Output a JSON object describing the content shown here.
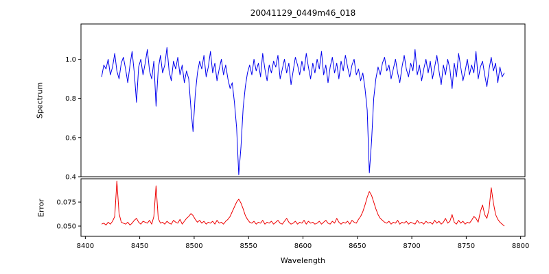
{
  "figure": {
    "title": "20041129_0449m46_018",
    "xlabel": "Wavelength"
  },
  "chart_data": [
    {
      "type": "line",
      "panel": "spectrum",
      "ylabel": "Spectrum",
      "color": "#0000ee",
      "xlim": [
        8396,
        8804
      ],
      "ylim": [
        0.4,
        1.18
      ],
      "yticks": [
        0.4,
        0.6,
        0.8,
        1.0
      ],
      "ytick_labels": [
        "0.4",
        "0.6",
        "0.8",
        "1.0"
      ],
      "xticks": [
        8400,
        8450,
        8500,
        8550,
        8600,
        8650,
        8700,
        8750,
        8800
      ],
      "xtick_labels": [
        "8400",
        "8450",
        "8500",
        "8550",
        "8600",
        "8650",
        "8700",
        "8750",
        "8800"
      ],
      "x_start": 8415,
      "x_step": 2,
      "values": [
        0.91,
        0.97,
        0.95,
        1.0,
        0.92,
        0.96,
        1.03,
        0.94,
        0.9,
        0.98,
        1.01,
        0.95,
        0.88,
        0.97,
        1.04,
        0.93,
        0.78,
        0.96,
        1.0,
        0.92,
        0.98,
        1.05,
        0.94,
        0.9,
        0.99,
        0.76,
        0.95,
        1.02,
        0.93,
        0.97,
        1.06,
        0.94,
        0.89,
        0.99,
        0.95,
        1.01,
        0.92,
        0.97,
        0.88,
        0.94,
        0.9,
        0.75,
        0.63,
        0.82,
        0.93,
        0.99,
        0.95,
        1.02,
        0.91,
        0.96,
        1.04,
        0.93,
        0.98,
        0.89,
        0.95,
        1.0,
        0.92,
        0.97,
        0.9,
        0.85,
        0.88,
        0.78,
        0.65,
        0.41,
        0.55,
        0.75,
        0.86,
        0.93,
        0.97,
        0.92,
        1.0,
        0.94,
        0.98,
        0.91,
        1.03,
        0.95,
        0.89,
        0.97,
        0.93,
        0.99,
        0.96,
        1.02,
        0.9,
        0.95,
        1.0,
        0.93,
        0.98,
        0.87,
        0.94,
        1.01,
        0.97,
        0.92,
        0.99,
        0.94,
        1.03,
        0.96,
        0.9,
        0.98,
        0.93,
        1.0,
        0.95,
        1.04,
        0.92,
        0.97,
        0.88,
        0.96,
        1.01,
        0.93,
        0.98,
        0.9,
        0.99,
        0.94,
        1.02,
        0.96,
        0.91,
        0.97,
        1.0,
        0.92,
        0.95,
        0.89,
        0.93,
        0.85,
        0.74,
        0.42,
        0.58,
        0.8,
        0.9,
        0.96,
        0.92,
        0.98,
        1.01,
        0.94,
        0.97,
        0.9,
        0.95,
        1.0,
        0.93,
        0.88,
        0.96,
        1.02,
        0.95,
        0.91,
        0.98,
        0.94,
        1.05,
        0.92,
        0.97,
        0.89,
        0.95,
        1.0,
        0.93,
        0.99,
        0.9,
        0.96,
        1.02,
        0.94,
        0.87,
        0.97,
        0.92,
        1.0,
        0.95,
        0.85,
        0.98,
        0.91,
        1.03,
        0.96,
        0.89,
        0.94,
        1.0,
        0.92,
        0.97,
        0.93,
        1.04,
        0.9,
        0.96,
        0.99,
        0.92,
        0.86,
        0.95,
        1.01,
        0.94,
        0.98,
        0.88,
        0.96,
        0.91,
        0.93
      ]
    },
    {
      "type": "line",
      "panel": "error",
      "ylabel": "Error",
      "color": "#ee0000",
      "xlim": [
        8396,
        8804
      ],
      "ylim": [
        0.0393,
        0.0993
      ],
      "yticks": [
        0.05,
        0.075
      ],
      "ytick_labels": [
        "0.050",
        "0.075"
      ],
      "xticks": [
        8400,
        8450,
        8500,
        8550,
        8600,
        8650,
        8700,
        8750,
        8800
      ],
      "xtick_labels": [
        "8400",
        "8450",
        "8500",
        "8550",
        "8600",
        "8650",
        "8700",
        "8750",
        "8800"
      ],
      "x_start": 8415,
      "x_step": 2,
      "values": [
        0.052,
        0.053,
        0.051,
        0.054,
        0.052,
        0.055,
        0.06,
        0.097,
        0.063,
        0.054,
        0.053,
        0.052,
        0.054,
        0.051,
        0.053,
        0.056,
        0.058,
        0.054,
        0.052,
        0.055,
        0.054,
        0.053,
        0.056,
        0.052,
        0.06,
        0.092,
        0.058,
        0.053,
        0.054,
        0.052,
        0.055,
        0.053,
        0.052,
        0.056,
        0.054,
        0.053,
        0.057,
        0.052,
        0.055,
        0.058,
        0.06,
        0.063,
        0.061,
        0.057,
        0.054,
        0.056,
        0.053,
        0.055,
        0.052,
        0.054,
        0.053,
        0.055,
        0.052,
        0.056,
        0.053,
        0.054,
        0.052,
        0.055,
        0.057,
        0.06,
        0.065,
        0.07,
        0.075,
        0.078,
        0.074,
        0.068,
        0.061,
        0.057,
        0.054,
        0.053,
        0.055,
        0.052,
        0.054,
        0.053,
        0.056,
        0.052,
        0.054,
        0.053,
        0.055,
        0.052,
        0.054,
        0.056,
        0.053,
        0.052,
        0.055,
        0.058,
        0.054,
        0.052,
        0.053,
        0.055,
        0.052,
        0.054,
        0.053,
        0.056,
        0.052,
        0.055,
        0.053,
        0.054,
        0.052,
        0.053,
        0.055,
        0.052,
        0.054,
        0.056,
        0.053,
        0.052,
        0.055,
        0.053,
        0.058,
        0.054,
        0.052,
        0.054,
        0.053,
        0.055,
        0.052,
        0.056,
        0.054,
        0.053,
        0.057,
        0.06,
        0.065,
        0.072,
        0.08,
        0.086,
        0.082,
        0.075,
        0.068,
        0.062,
        0.058,
        0.056,
        0.054,
        0.053,
        0.055,
        0.052,
        0.054,
        0.053,
        0.056,
        0.052,
        0.054,
        0.053,
        0.055,
        0.052,
        0.054,
        0.053,
        0.052,
        0.056,
        0.053,
        0.054,
        0.052,
        0.055,
        0.053,
        0.054,
        0.052,
        0.056,
        0.053,
        0.055,
        0.052,
        0.054,
        0.058,
        0.053,
        0.055,
        0.062,
        0.054,
        0.052,
        0.056,
        0.053,
        0.055,
        0.052,
        0.054,
        0.053,
        0.056,
        0.06,
        0.058,
        0.054,
        0.065,
        0.072,
        0.062,
        0.058,
        0.068,
        0.09,
        0.074,
        0.062,
        0.057,
        0.054,
        0.052,
        0.05
      ]
    }
  ]
}
